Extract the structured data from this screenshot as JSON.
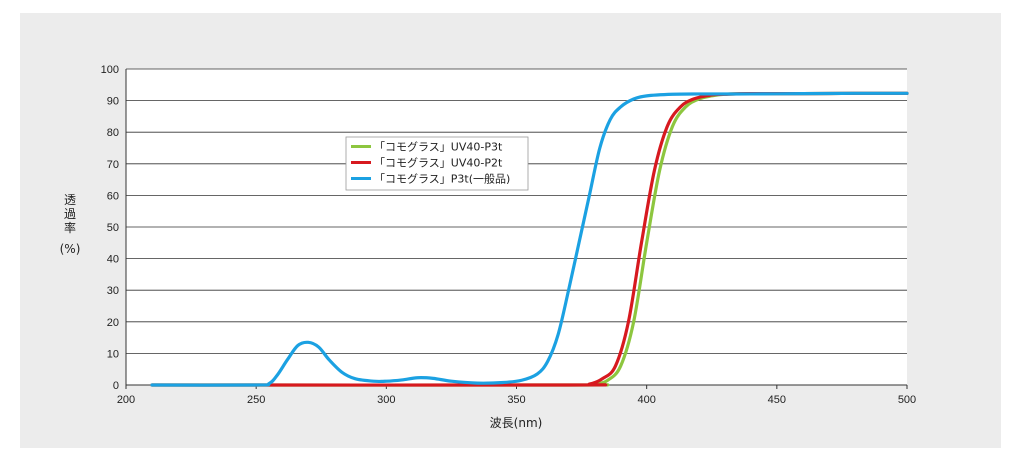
{
  "chart_data": {
    "type": "line",
    "title": "",
    "xlabel": "波長(nm)",
    "ylabel_chars": [
      "透",
      "過",
      "率"
    ],
    "ylabel_unit": "(%)",
    "xlim": [
      200,
      500
    ],
    "ylim": [
      0,
      100
    ],
    "x_ticks": [
      200,
      250,
      300,
      350,
      400,
      450,
      500
    ],
    "y_ticks": [
      0,
      10,
      20,
      30,
      40,
      50,
      60,
      70,
      80,
      90,
      100
    ],
    "grid": "horizontal",
    "legend_position": "center-left",
    "series": [
      {
        "name": "「コモグラス」UV40-P3t",
        "color": "#8dc63f",
        "points": [
          [
            210,
            0
          ],
          [
            370,
            0
          ],
          [
            380,
            0.3
          ],
          [
            385,
            1.5
          ],
          [
            390,
            6
          ],
          [
            395,
            20
          ],
          [
            400,
            45
          ],
          [
            405,
            68
          ],
          [
            410,
            82
          ],
          [
            415,
            88
          ],
          [
            420,
            90.5
          ],
          [
            425,
            91.5
          ],
          [
            430,
            92
          ],
          [
            440,
            92.2
          ],
          [
            460,
            92.2
          ],
          [
            480,
            92.3
          ],
          [
            500,
            92.3
          ]
        ]
      },
      {
        "name": "「コモグラス」UV40-P2t",
        "color": "#d7191f",
        "points": [
          [
            210,
            0
          ],
          [
            370,
            0
          ],
          [
            378,
            0.3
          ],
          [
            383,
            2
          ],
          [
            388,
            6
          ],
          [
            393,
            20
          ],
          [
            398,
            45
          ],
          [
            403,
            68
          ],
          [
            408,
            82
          ],
          [
            413,
            88
          ],
          [
            418,
            90.5
          ],
          [
            425,
            91.8
          ],
          [
            430,
            92
          ],
          [
            440,
            92.2
          ],
          [
            460,
            92.2
          ],
          [
            480,
            92.3
          ],
          [
            500,
            92.3
          ]
        ]
      },
      {
        "name": "「コモグラス」P3t(一般品)",
        "color": "#1ba1e2",
        "points": [
          [
            210,
            0
          ],
          [
            250,
            0
          ],
          [
            255,
            0.5
          ],
          [
            258,
            3
          ],
          [
            262,
            8
          ],
          [
            266,
            12.5
          ],
          [
            270,
            13.5
          ],
          [
            274,
            12
          ],
          [
            278,
            8
          ],
          [
            283,
            4
          ],
          [
            288,
            2
          ],
          [
            295,
            1.2
          ],
          [
            300,
            1.2
          ],
          [
            306,
            1.6
          ],
          [
            312,
            2.3
          ],
          [
            318,
            2.1
          ],
          [
            325,
            1.2
          ],
          [
            335,
            0.6
          ],
          [
            345,
            0.8
          ],
          [
            352,
            1.5
          ],
          [
            358,
            3.5
          ],
          [
            362,
            7.5
          ],
          [
            366,
            16
          ],
          [
            370,
            30
          ],
          [
            374,
            45
          ],
          [
            378,
            60
          ],
          [
            382,
            75
          ],
          [
            386,
            84
          ],
          [
            390,
            88
          ],
          [
            395,
            90.5
          ],
          [
            400,
            91.5
          ],
          [
            410,
            92
          ],
          [
            420,
            92.1
          ],
          [
            440,
            92.1
          ],
          [
            460,
            92.2
          ],
          [
            480,
            92.3
          ],
          [
            500,
            92.3
          ]
        ]
      }
    ]
  }
}
